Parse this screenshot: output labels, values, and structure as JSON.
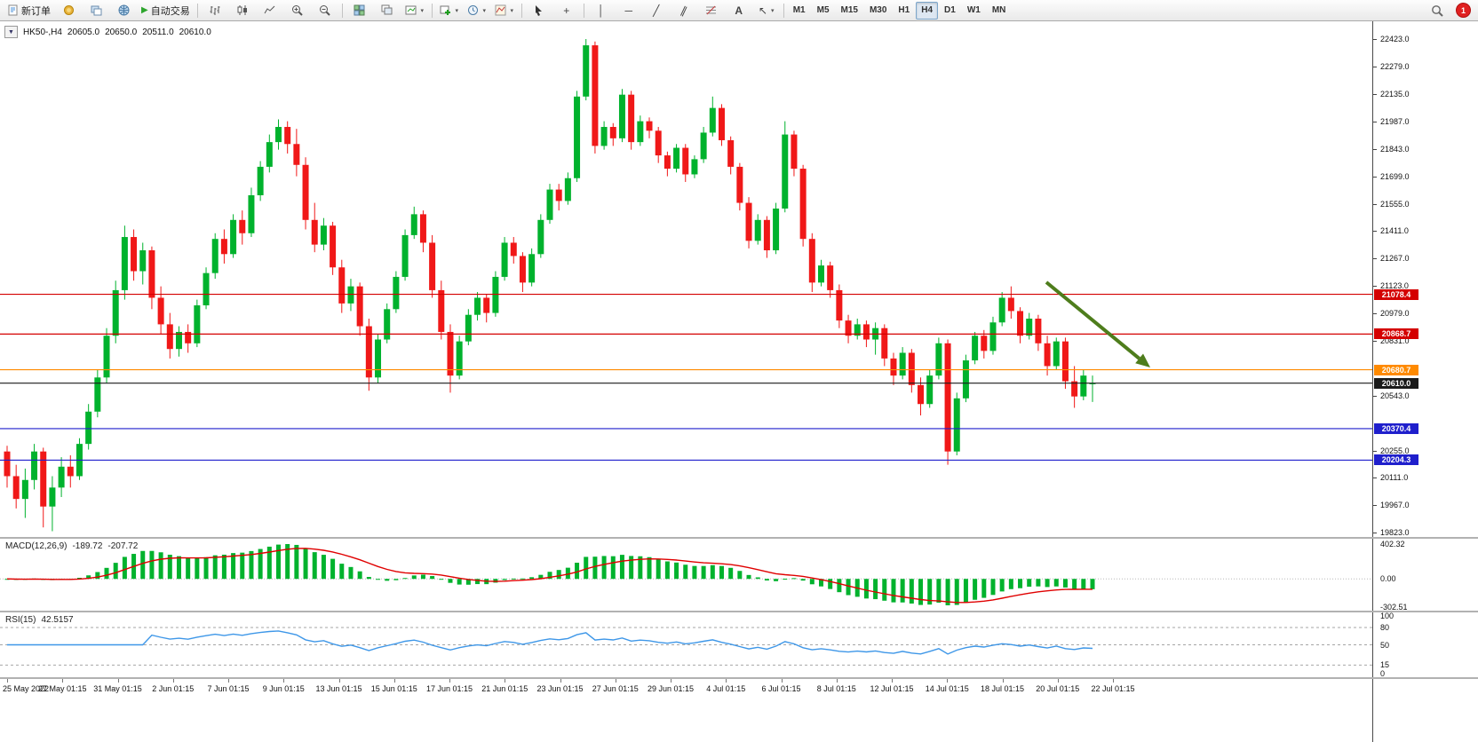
{
  "toolbar": {
    "new_order_label": "新订单",
    "autotrade_label": "自动交易",
    "timeframes": [
      "M1",
      "M5",
      "M15",
      "M30",
      "H1",
      "H4",
      "D1",
      "W1",
      "MN"
    ],
    "active_timeframe": "H4",
    "notification_count": "1",
    "icon_glyphs": {
      "caret": "▾",
      "play": "▶",
      "crosshair": "+",
      "vline": "│",
      "hline": "─",
      "trendline": "╱",
      "channel": "∥",
      "text_tool": "A",
      "arrows_tool": "↖",
      "collapse": "▼"
    }
  },
  "chart": {
    "symbol_period": "HK50-,H4",
    "open": "20605.0",
    "high": "20650.0",
    "low": "20511.0",
    "close": "20610.0"
  },
  "macd": {
    "label": "MACD(12,26,9)",
    "value1": "-189.72",
    "value2": "-207.72",
    "scale_top": "402.32",
    "scale_zero": "0.00",
    "scale_bottom": "-302.51"
  },
  "rsi": {
    "label": "RSI(15)",
    "value": "42.5157",
    "levels": [
      "100",
      "80",
      "50",
      "15",
      "0"
    ],
    "level_values": [
      100,
      80,
      50,
      15,
      0
    ],
    "dashed_levels": [
      80,
      50,
      15
    ]
  },
  "price_scale": {
    "ticks": [
      "22423.0",
      "22279.0",
      "22135.0",
      "21987.0",
      "21843.0",
      "21699.0",
      "21555.0",
      "21411.0",
      "21267.0",
      "21123.0",
      "20979.0",
      "20831.0",
      "20543.0",
      "20255.0",
      "20111.0",
      "19967.0",
      "19823.0"
    ]
  },
  "lines": [
    {
      "price": 21078.4,
      "label": "21078.4",
      "color": "#D40000"
    },
    {
      "price": 20868.7,
      "label": "20868.7",
      "color": "#D40000"
    },
    {
      "price": 20680.7,
      "label": "20680.7",
      "color": "#FF8A00"
    },
    {
      "price": 20610.0,
      "label": "20610.0",
      "color": "#1A1A1A"
    },
    {
      "price": 20370.4,
      "label": "20370.4",
      "color": "#1F1FCC"
    },
    {
      "price": 20204.3,
      "label": "20204.3",
      "color": "#1F1FCC"
    }
  ],
  "colors": {
    "up": "#00B22D",
    "down": "#F01818",
    "macd_hist": "#00B22D",
    "macd_signal": "#E00000",
    "rsi_line": "#3E97E8",
    "arrow": "#4E7D1C"
  },
  "chart_data": {
    "type": "candlestick",
    "symbol": "HK50-",
    "timeframe": "H4",
    "title": "HK50-,H4 20605.0 20650.0 20511.0 20610.0",
    "ohlc_current": [
      20605.0,
      20650.0,
      20511.0,
      20610.0
    ],
    "price_range": [
      19823.0,
      22423.0
    ],
    "horizontal_lines": [
      21078.4,
      20868.7,
      20680.7,
      20610.0,
      20370.4,
      20204.3
    ],
    "annotation": "green arrow pointing down-right toward 20680.7 line",
    "indicators": [
      {
        "name": "MACD(12,26,9)",
        "current": [
          -189.72,
          -207.72
        ]
      },
      {
        "name": "RSI(15)",
        "current": 42.5157
      }
    ],
    "time_labels": [
      "25 May 2022",
      "27 May 01:15",
      "31 May 01:15",
      "2 Jun 01:15",
      "7 Jun 01:15",
      "9 Jun 01:15",
      "13 Jun 01:15",
      "15 Jun 01:15",
      "17 Jun 01:15",
      "21 Jun 01:15",
      "23 Jun 01:15",
      "27 Jun 01:15",
      "29 Jun 01:15",
      "4 Jul 01:15",
      "6 Jul 01:15",
      "8 Jul 01:15",
      "12 Jul 01:15",
      "14 Jul 01:15",
      "18 Jul 01:15",
      "20 Jul 01:15",
      "22 Jul 01:15"
    ],
    "candles": [
      [
        20250,
        20280,
        20060,
        20120
      ],
      [
        20120,
        20180,
        19950,
        20000
      ],
      [
        20000,
        20160,
        19900,
        20100
      ],
      [
        20100,
        20290,
        20050,
        20250
      ],
      [
        20250,
        20270,
        19850,
        19960
      ],
      [
        19960,
        20120,
        19830,
        20060
      ],
      [
        20060,
        20220,
        20010,
        20170
      ],
      [
        20170,
        20230,
        20060,
        20120
      ],
      [
        20120,
        20320,
        20100,
        20290
      ],
      [
        20290,
        20500,
        20260,
        20460
      ],
      [
        20460,
        20680,
        20430,
        20640
      ],
      [
        20640,
        20900,
        20610,
        20860
      ],
      [
        20860,
        21150,
        20820,
        21100
      ],
      [
        21100,
        21440,
        21050,
        21380
      ],
      [
        21380,
        21420,
        21150,
        21200
      ],
      [
        21200,
        21350,
        21130,
        21310
      ],
      [
        21310,
        21330,
        21000,
        21060
      ],
      [
        21060,
        21120,
        20870,
        20920
      ],
      [
        20920,
        20980,
        20740,
        20790
      ],
      [
        20790,
        20910,
        20750,
        20880
      ],
      [
        20880,
        20920,
        20770,
        20820
      ],
      [
        20820,
        21050,
        20800,
        21020
      ],
      [
        21020,
        21220,
        21000,
        21190
      ],
      [
        21190,
        21400,
        21160,
        21370
      ],
      [
        21370,
        21420,
        21240,
        21290
      ],
      [
        21290,
        21500,
        21270,
        21470
      ],
      [
        21470,
        21520,
        21340,
        21400
      ],
      [
        21400,
        21640,
        21380,
        21600
      ],
      [
        21600,
        21780,
        21570,
        21750
      ],
      [
        21750,
        21920,
        21720,
        21880
      ],
      [
        21880,
        22000,
        21840,
        21960
      ],
      [
        21960,
        21990,
        21820,
        21870
      ],
      [
        21870,
        21950,
        21700,
        21760
      ],
      [
        21760,
        21800,
        21420,
        21470
      ],
      [
        21470,
        21560,
        21300,
        21340
      ],
      [
        21340,
        21480,
        21310,
        21440
      ],
      [
        21440,
        21460,
        21180,
        21220
      ],
      [
        21220,
        21260,
        20980,
        21030
      ],
      [
        21030,
        21160,
        20990,
        21120
      ],
      [
        21120,
        21140,
        20860,
        20910
      ],
      [
        20910,
        20950,
        20570,
        20640
      ],
      [
        20640,
        20870,
        20610,
        20840
      ],
      [
        20840,
        21030,
        20820,
        21000
      ],
      [
        21000,
        21200,
        20980,
        21170
      ],
      [
        21170,
        21420,
        21150,
        21390
      ],
      [
        21390,
        21540,
        21370,
        21500
      ],
      [
        21500,
        21520,
        21300,
        21350
      ],
      [
        21350,
        21390,
        21060,
        21100
      ],
      [
        21100,
        21150,
        20840,
        20880
      ],
      [
        20880,
        20920,
        20560,
        20650
      ],
      [
        20650,
        20860,
        20630,
        20830
      ],
      [
        20830,
        21000,
        20810,
        20970
      ],
      [
        20970,
        21090,
        20940,
        21060
      ],
      [
        21060,
        21080,
        20930,
        20980
      ],
      [
        20980,
        21200,
        20960,
        21170
      ],
      [
        21170,
        21380,
        21150,
        21350
      ],
      [
        21350,
        21380,
        21240,
        21280
      ],
      [
        21280,
        21300,
        21090,
        21140
      ],
      [
        21140,
        21320,
        21120,
        21290
      ],
      [
        21290,
        21500,
        21270,
        21470
      ],
      [
        21470,
        21660,
        21450,
        21630
      ],
      [
        21630,
        21660,
        21520,
        21570
      ],
      [
        21570,
        21720,
        21550,
        21690
      ],
      [
        21690,
        22150,
        21670,
        22120
      ],
      [
        22120,
        22423,
        22100,
        22390
      ],
      [
        22390,
        22410,
        21820,
        21860
      ],
      [
        21860,
        21990,
        21840,
        21960
      ],
      [
        21960,
        21980,
        21860,
        21900
      ],
      [
        21900,
        22160,
        21880,
        22130
      ],
      [
        22130,
        22150,
        21840,
        21880
      ],
      [
        21880,
        22020,
        21860,
        21990
      ],
      [
        21990,
        22010,
        21900,
        21940
      ],
      [
        21940,
        21960,
        21770,
        21810
      ],
      [
        21810,
        21830,
        21700,
        21740
      ],
      [
        21740,
        21870,
        21720,
        21850
      ],
      [
        21850,
        21870,
        21670,
        21710
      ],
      [
        21710,
        21810,
        21690,
        21790
      ],
      [
        21790,
        21960,
        21770,
        21930
      ],
      [
        21930,
        22120,
        21910,
        22060
      ],
      [
        22060,
        22080,
        21860,
        21890
      ],
      [
        21890,
        21910,
        21710,
        21750
      ],
      [
        21750,
        21770,
        21520,
        21560
      ],
      [
        21560,
        21590,
        21320,
        21360
      ],
      [
        21360,
        21500,
        21340,
        21470
      ],
      [
        21470,
        21490,
        21270,
        21310
      ],
      [
        21310,
        21560,
        21290,
        21530
      ],
      [
        21530,
        21990,
        21510,
        21920
      ],
      [
        21920,
        21940,
        21700,
        21740
      ],
      [
        21740,
        21760,
        21330,
        21370
      ],
      [
        21370,
        21400,
        21090,
        21140
      ],
      [
        21140,
        21260,
        21120,
        21230
      ],
      [
        21230,
        21250,
        21060,
        21100
      ],
      [
        21100,
        21130,
        20900,
        20940
      ],
      [
        20940,
        20970,
        20820,
        20860
      ],
      [
        20860,
        20950,
        20840,
        20920
      ],
      [
        20920,
        20940,
        20800,
        20840
      ],
      [
        20840,
        20930,
        20760,
        20900
      ],
      [
        20900,
        20920,
        20700,
        20740
      ],
      [
        20740,
        20770,
        20600,
        20650
      ],
      [
        20650,
        20800,
        20630,
        20770
      ],
      [
        20770,
        20790,
        20560,
        20600
      ],
      [
        20600,
        20640,
        20440,
        20500
      ],
      [
        20500,
        20680,
        20480,
        20650
      ],
      [
        20650,
        20850,
        20630,
        20820
      ],
      [
        20820,
        20840,
        20180,
        20250
      ],
      [
        20250,
        20560,
        20230,
        20530
      ],
      [
        20530,
        20760,
        20510,
        20730
      ],
      [
        20730,
        20880,
        20710,
        20860
      ],
      [
        20860,
        20890,
        20740,
        20780
      ],
      [
        20780,
        20960,
        20760,
        20930
      ],
      [
        20930,
        21090,
        20910,
        21060
      ],
      [
        21060,
        21120,
        20950,
        20990
      ],
      [
        20990,
        21010,
        20820,
        20860
      ],
      [
        20860,
        20980,
        20840,
        20950
      ],
      [
        20950,
        20970,
        20780,
        20820
      ],
      [
        20820,
        20860,
        20650,
        20700
      ],
      [
        20700,
        20850,
        20680,
        20830
      ],
      [
        20830,
        20850,
        20580,
        20620
      ],
      [
        20620,
        20700,
        20480,
        20540
      ],
      [
        20540,
        20680,
        20520,
        20650
      ],
      [
        20605,
        20650,
        20511,
        20610
      ]
    ]
  }
}
